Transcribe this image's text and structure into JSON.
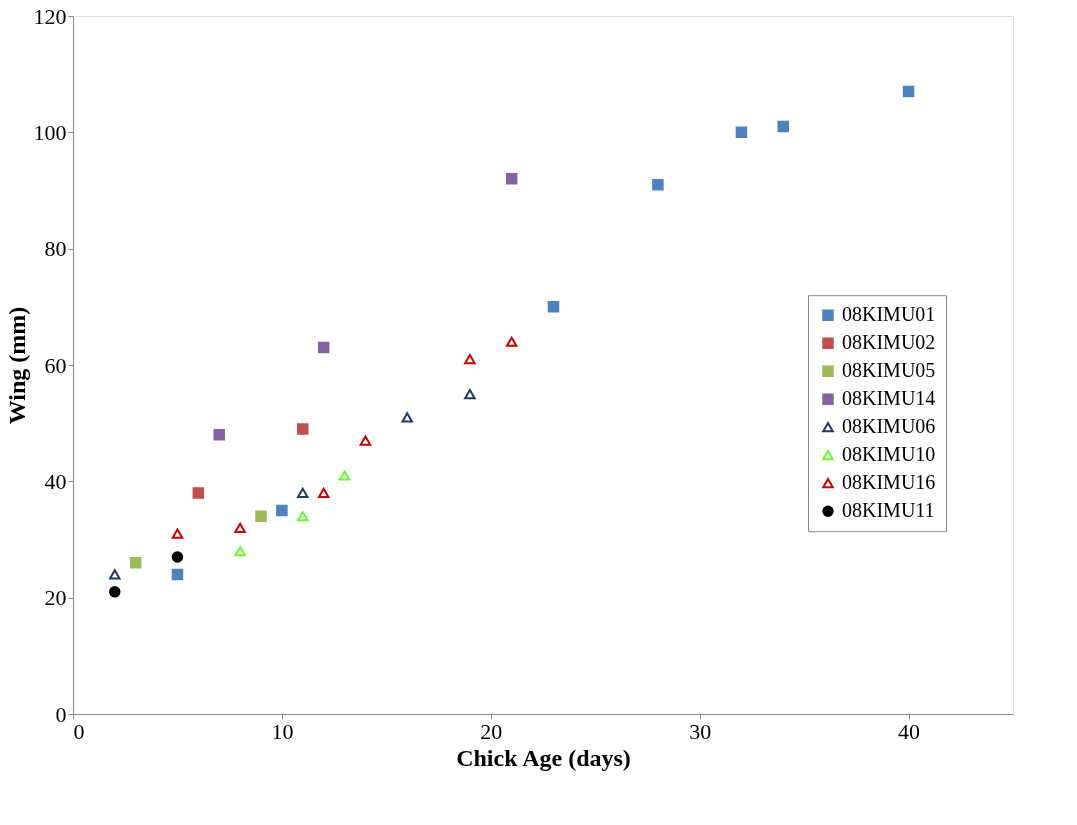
{
  "chart_data": {
    "type": "scatter",
    "xlabel": "Chick Age (days)",
    "ylabel": "Wing (mm)",
    "xlim": [
      0,
      45
    ],
    "xticks": [
      0,
      10,
      20,
      30,
      40
    ],
    "ylim": [
      0,
      120
    ],
    "yticks": [
      0,
      20,
      40,
      60,
      80,
      100,
      120
    ],
    "grid": false,
    "legend": "right",
    "series": [
      {
        "name": "08KIMU01",
        "color": "#4f81bd",
        "marker": "square",
        "x": [
          5,
          10,
          23,
          28,
          32,
          34,
          40
        ],
        "values": [
          24,
          35,
          70,
          91,
          100,
          101,
          107
        ]
      },
      {
        "name": "08KIMU02",
        "color": "#c0504d",
        "marker": "square",
        "x": [
          6,
          11
        ],
        "values": [
          38,
          49
        ]
      },
      {
        "name": "08KIMU05",
        "color": "#9bbb59",
        "marker": "square",
        "x": [
          3,
          9
        ],
        "values": [
          26,
          34
        ]
      },
      {
        "name": "08KIMU14",
        "color": "#8064a2",
        "marker": "square",
        "x": [
          7,
          12,
          21
        ],
        "values": [
          48,
          63,
          92
        ]
      },
      {
        "name": "08KIMU06",
        "color": "#1f3864",
        "marker": "triangle",
        "x": [
          2,
          11,
          16,
          19
        ],
        "values": [
          24,
          38,
          51,
          55
        ]
      },
      {
        "name": "08KIMU10",
        "color": "#66ff33",
        "marker": "triangle",
        "x": [
          8,
          11,
          13
        ],
        "values": [
          28,
          34,
          41
        ]
      },
      {
        "name": "08KIMU16",
        "color": "#cc0000",
        "marker": "triangle",
        "x": [
          5,
          8,
          12,
          14,
          19,
          21
        ],
        "values": [
          31,
          32,
          38,
          47,
          61,
          64
        ]
      },
      {
        "name": "08KIMU11",
        "color": "#000000",
        "marker": "circle",
        "x": [
          2,
          5
        ],
        "values": [
          21,
          27
        ]
      }
    ]
  }
}
